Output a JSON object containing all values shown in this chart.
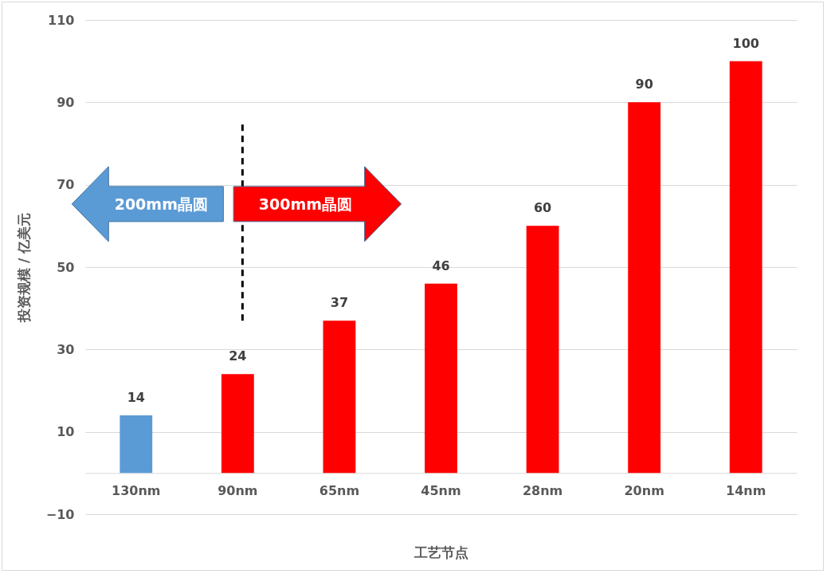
{
  "chart_data": {
    "type": "bar",
    "xlabel": "工艺节点",
    "ylabel": "投资规模 / 亿美元",
    "categories": [
      "130nm",
      "90nm",
      "65nm",
      "45nm",
      "28nm",
      "20nm",
      "14nm"
    ],
    "series": [
      {
        "value_labels": [
          "14",
          "24",
          "37",
          "46",
          "60",
          "90",
          "100"
        ],
        "colors": [
          "#5b9bd5",
          "#ff0000",
          "#ff0000",
          "#ff0000",
          "#ff0000",
          "#ff0000",
          "#ff0000"
        ],
        "values": [
          14,
          24,
          37,
          46,
          60,
          90,
          100
        ]
      },
      {
        "type": "line",
        "x": [
          "90nm",
          "90nm"
        ],
        "values": [
          37,
          85
        ],
        "color": "#000000",
        "line_style": "dashed"
      }
    ],
    "ylim": [
      -10,
      110
    ],
    "yticks": [
      -10,
      10,
      30,
      50,
      70,
      90,
      110
    ],
    "grid": "y",
    "annotations": [
      "200mm晶圆",
      "300mm晶圆"
    ]
  }
}
